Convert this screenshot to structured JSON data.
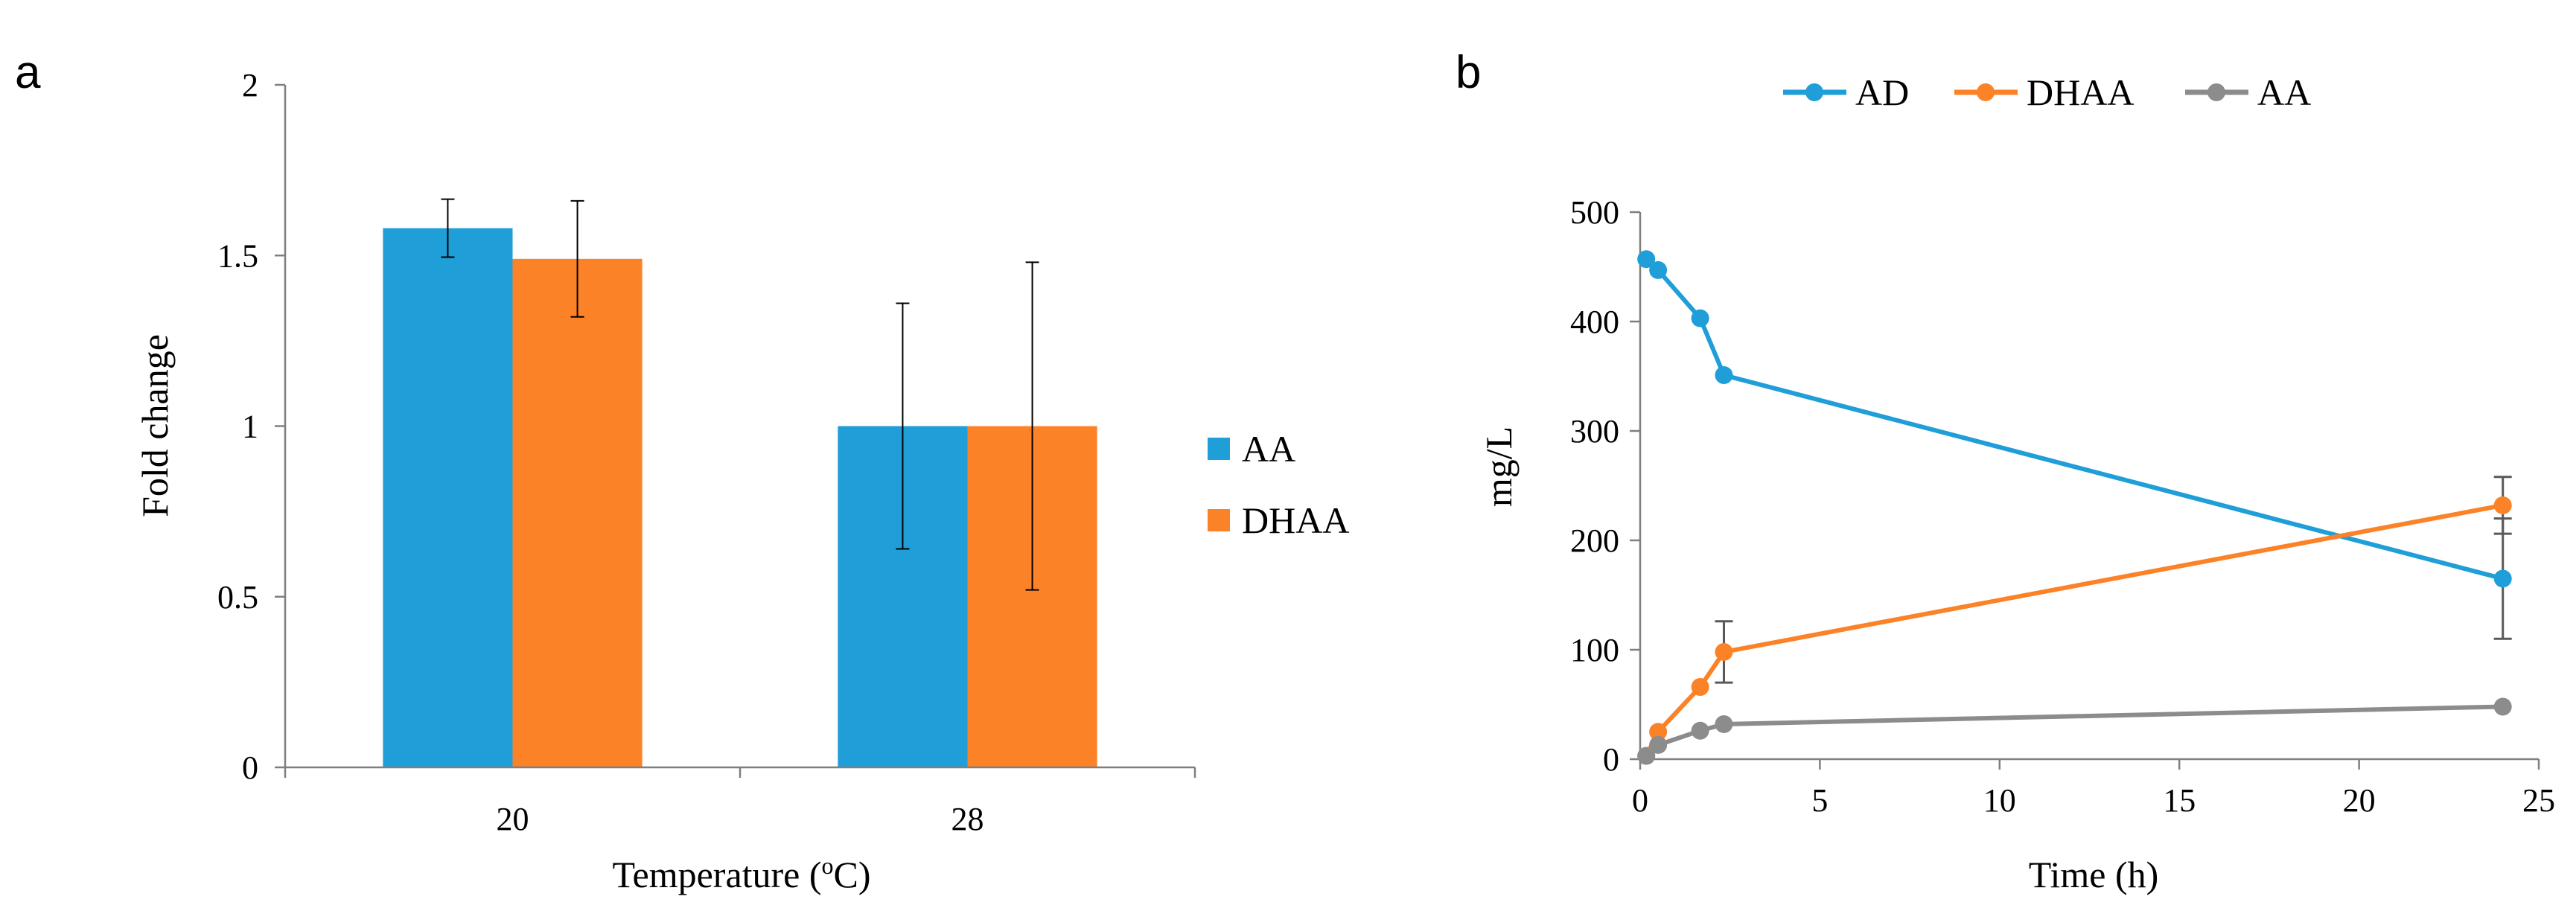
{
  "chart_data": [
    {
      "type": "bar",
      "panel_label": "a",
      "categories": [
        "20",
        "28"
      ],
      "series": [
        {
          "name": "AA",
          "color": "#1f9ed8",
          "values": [
            1.58,
            1.0
          ],
          "errors": [
            0.085,
            0.36
          ]
        },
        {
          "name": "DHAA",
          "color": "#fc8228",
          "values": [
            1.49,
            1.0
          ],
          "errors": [
            0.17,
            0.48
          ]
        }
      ],
      "title": "",
      "xlabel": "Temperature (",
      "xlabel_sup": "o",
      "xlabel_unit": "C)",
      "ylabel": "Fold change",
      "ylim": [
        0,
        2
      ],
      "yticks": [
        "0",
        "0.5",
        "1",
        "1.5",
        "2"
      ],
      "grid": false,
      "legend": "right"
    },
    {
      "type": "line",
      "panel_label": "b",
      "x": [
        0.17,
        0.5,
        1.67,
        2.33,
        24
      ],
      "series": [
        {
          "name": "AD",
          "color": "#1f9ed8",
          "values": [
            457,
            447,
            403,
            351,
            165
          ],
          "errors": [
            0,
            0,
            0,
            0,
            55
          ]
        },
        {
          "name": "DHAA",
          "color": "#fc8228",
          "values": [
            3,
            25,
            66,
            98,
            232
          ],
          "errors": [
            0,
            0,
            0,
            28,
            26
          ]
        },
        {
          "name": "AA",
          "color": "#8c8c8c",
          "values": [
            3,
            13,
            26,
            32,
            48
          ],
          "errors": [
            0,
            0,
            0,
            0,
            0
          ]
        }
      ],
      "title": "",
      "xlabel": "Time (h)",
      "ylabel": "mg/L",
      "xlim": [
        0,
        25
      ],
      "ylim": [
        0,
        500
      ],
      "xticks": [
        "0",
        "5",
        "10",
        "15",
        "20",
        "25"
      ],
      "yticks": [
        "0",
        "100",
        "200",
        "300",
        "400",
        "500"
      ],
      "grid": false,
      "legend": "top"
    }
  ]
}
